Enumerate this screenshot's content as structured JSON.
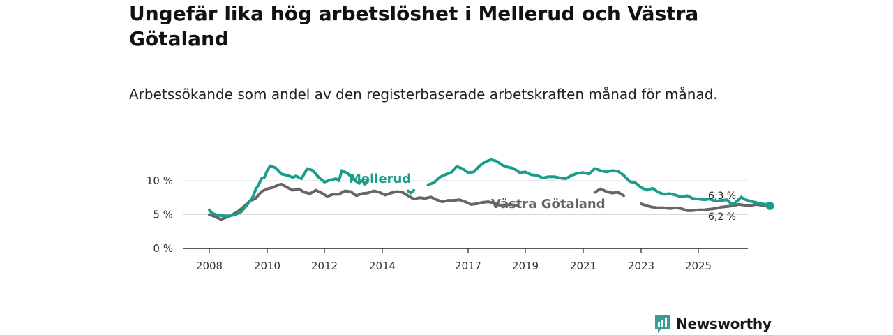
{
  "title": "Ungefär lika hög arbetslöshet i Mellerud och Västra Götaland",
  "subtitle": "Arbetssökande som andel av den registerbaserade arbetskraften månad för månad.",
  "brand": {
    "name": "Newsworthy",
    "icon": "newsworthy-logo-icon",
    "color": "#3a9c92"
  },
  "colors": {
    "mellerud": "#1a9e8c",
    "vastra": "#666666",
    "axis": "#222222",
    "grid": "#d9d9d9"
  },
  "chart_data": {
    "type": "line",
    "title": "Ungefär lika hög arbetslöshet i Mellerud och Västra Götaland",
    "xlabel": "",
    "ylabel": "",
    "xlim": [
      2007.1,
      2026.7
    ],
    "ylim": [
      0,
      12.5
    ],
    "grid": true,
    "x_ticks": [
      2008,
      2010,
      2012,
      2014,
      2017,
      2019,
      2021,
      2023,
      2025
    ],
    "x_tick_labels": [
      "2008",
      "2010",
      "2012",
      "2014",
      "2017",
      "2019",
      "2021",
      "2023",
      "2025"
    ],
    "y_ticks": [
      0,
      5,
      10
    ],
    "y_tick_labels": [
      "0 %",
      "5 %",
      "10 %"
    ],
    "series": [
      {
        "name": "Mellerud",
        "label": "Mellerud",
        "color": "#1a9e8c",
        "end_label": "6,3 %",
        "segments": [
          [
            [
              2008.0,
              5.7
            ],
            [
              2008.1,
              5.2
            ],
            [
              2008.3,
              4.9
            ],
            [
              2008.5,
              4.8
            ],
            [
              2008.7,
              4.8
            ],
            [
              2008.9,
              5.0
            ],
            [
              2009.1,
              5.4
            ],
            [
              2009.3,
              6.4
            ],
            [
              2009.5,
              7.6
            ],
            [
              2009.6,
              8.7
            ],
            [
              2009.7,
              9.4
            ],
            [
              2009.8,
              10.3
            ],
            [
              2009.9,
              10.5
            ],
            [
              2010.0,
              11.5
            ],
            [
              2010.1,
              12.2
            ],
            [
              2010.3,
              11.9
            ],
            [
              2010.5,
              11.0
            ],
            [
              2010.7,
              10.8
            ],
            [
              2010.9,
              10.5
            ],
            [
              2011.0,
              10.7
            ],
            [
              2011.2,
              10.3
            ],
            [
              2011.4,
              11.8
            ],
            [
              2011.6,
              11.5
            ],
            [
              2011.8,
              10.5
            ],
            [
              2012.0,
              9.8
            ],
            [
              2012.2,
              10.1
            ],
            [
              2012.4,
              10.3
            ],
            [
              2012.5,
              10.0
            ],
            [
              2012.6,
              11.5
            ],
            [
              2012.8,
              11.1
            ],
            [
              2013.0,
              10.2
            ],
            [
              2013.2,
              9.6
            ],
            [
              2013.3,
              10.1
            ],
            [
              2013.4,
              9.5
            ],
            [
              2013.5,
              10.0
            ]
          ],
          [
            [
              2014.9,
              8.5
            ],
            [
              2015.0,
              8.2
            ],
            [
              2015.1,
              8.6
            ]
          ],
          [
            [
              2015.6,
              9.4
            ],
            [
              2015.8,
              9.7
            ],
            [
              2016.0,
              10.5
            ],
            [
              2016.2,
              10.9
            ],
            [
              2016.4,
              11.2
            ],
            [
              2016.6,
              12.1
            ],
            [
              2016.8,
              11.8
            ],
            [
              2017.0,
              11.2
            ],
            [
              2017.2,
              11.3
            ],
            [
              2017.4,
              12.2
            ],
            [
              2017.6,
              12.8
            ],
            [
              2017.8,
              13.1
            ],
            [
              2018.0,
              12.9
            ],
            [
              2018.2,
              12.3
            ],
            [
              2018.4,
              12.0
            ],
            [
              2018.6,
              11.8
            ],
            [
              2018.8,
              11.2
            ],
            [
              2019.0,
              11.3
            ],
            [
              2019.2,
              10.9
            ],
            [
              2019.4,
              10.8
            ],
            [
              2019.6,
              10.4
            ],
            [
              2019.8,
              10.6
            ],
            [
              2020.0,
              10.6
            ],
            [
              2020.2,
              10.4
            ],
            [
              2020.4,
              10.3
            ],
            [
              2020.6,
              10.8
            ],
            [
              2020.8,
              11.1
            ],
            [
              2021.0,
              11.2
            ],
            [
              2021.2,
              11.0
            ],
            [
              2021.4,
              11.8
            ],
            [
              2021.6,
              11.5
            ],
            [
              2021.8,
              11.3
            ],
            [
              2022.0,
              11.5
            ],
            [
              2022.2,
              11.4
            ],
            [
              2022.4,
              10.8
            ],
            [
              2022.6,
              9.9
            ],
            [
              2022.8,
              9.7
            ],
            [
              2023.0,
              9.0
            ],
            [
              2023.2,
              8.6
            ],
            [
              2023.4,
              8.9
            ],
            [
              2023.6,
              8.3
            ],
            [
              2023.8,
              8.0
            ],
            [
              2024.0,
              8.1
            ],
            [
              2024.2,
              7.9
            ],
            [
              2024.4,
              7.6
            ],
            [
              2024.6,
              7.8
            ],
            [
              2024.8,
              7.4
            ],
            [
              2025.0,
              7.3
            ],
            [
              2025.2,
              7.2
            ],
            [
              2025.4,
              7.3
            ],
            [
              2025.6,
              7.0
            ],
            [
              2025.8,
              7.1
            ],
            [
              2026.0,
              7.2
            ],
            [
              2026.1,
              6.8
            ],
            [
              2026.2,
              6.5
            ],
            [
              2026.3,
              6.8
            ],
            [
              2026.5,
              7.6
            ],
            [
              2026.6,
              7.3
            ],
            [
              2026.8,
              7.0
            ],
            [
              2027.0,
              6.8
            ],
            [
              2027.2,
              6.6
            ],
            [
              2027.4,
              6.5
            ],
            [
              2027.5,
              6.3
            ]
          ]
        ]
      },
      {
        "name": "Västra Götaland",
        "label": "Västra Götaland",
        "color": "#666666",
        "end_label": "6,2 %",
        "segments": [
          [
            [
              2008.0,
              5.0
            ],
            [
              2008.2,
              4.7
            ],
            [
              2008.4,
              4.3
            ],
            [
              2008.6,
              4.6
            ],
            [
              2008.8,
              5.0
            ],
            [
              2009.0,
              5.5
            ],
            [
              2009.2,
              6.2
            ],
            [
              2009.4,
              7.0
            ],
            [
              2009.6,
              7.4
            ],
            [
              2009.8,
              8.4
            ],
            [
              2010.0,
              8.8
            ],
            [
              2010.2,
              9.0
            ],
            [
              2010.4,
              9.4
            ],
            [
              2010.5,
              9.5
            ],
            [
              2010.7,
              9.0
            ],
            [
              2010.9,
              8.6
            ],
            [
              2011.1,
              8.8
            ],
            [
              2011.3,
              8.3
            ],
            [
              2011.5,
              8.1
            ],
            [
              2011.7,
              8.6
            ],
            [
              2011.9,
              8.2
            ],
            [
              2012.1,
              7.7
            ],
            [
              2012.3,
              8.0
            ],
            [
              2012.5,
              8.0
            ],
            [
              2012.7,
              8.5
            ],
            [
              2012.9,
              8.4
            ],
            [
              2013.1,
              7.8
            ],
            [
              2013.3,
              8.1
            ],
            [
              2013.5,
              8.2
            ],
            [
              2013.7,
              8.5
            ],
            [
              2013.9,
              8.3
            ],
            [
              2014.1,
              7.9
            ],
            [
              2014.3,
              8.2
            ],
            [
              2014.5,
              8.4
            ],
            [
              2014.7,
              8.3
            ],
            [
              2014.9,
              7.8
            ],
            [
              2015.1,
              7.3
            ],
            [
              2015.3,
              7.5
            ],
            [
              2015.5,
              7.4
            ],
            [
              2015.7,
              7.6
            ],
            [
              2015.9,
              7.2
            ],
            [
              2016.1,
              6.9
            ],
            [
              2016.3,
              7.1
            ],
            [
              2016.5,
              7.1
            ],
            [
              2016.7,
              7.2
            ],
            [
              2016.9,
              6.9
            ],
            [
              2017.1,
              6.5
            ],
            [
              2017.3,
              6.6
            ],
            [
              2017.5,
              6.8
            ],
            [
              2017.7,
              6.9
            ],
            [
              2017.9,
              6.7
            ],
            [
              2018.1,
              6.4
            ],
            [
              2018.3,
              6.4
            ],
            [
              2018.5,
              6.5
            ],
            [
              2018.7,
              6.3
            ]
          ],
          [
            [
              2021.4,
              8.3
            ],
            [
              2021.6,
              8.8
            ],
            [
              2021.8,
              8.4
            ],
            [
              2022.0,
              8.2
            ],
            [
              2022.2,
              8.3
            ],
            [
              2022.4,
              7.8
            ]
          ],
          [
            [
              2023.0,
              6.6
            ],
            [
              2023.2,
              6.3
            ],
            [
              2023.4,
              6.1
            ],
            [
              2023.6,
              6.0
            ],
            [
              2023.8,
              6.0
            ],
            [
              2024.0,
              5.9
            ],
            [
              2024.2,
              6.0
            ],
            [
              2024.4,
              5.9
            ],
            [
              2024.6,
              5.6
            ],
            [
              2024.8,
              5.6
            ],
            [
              2025.0,
              5.7
            ],
            [
              2025.2,
              5.7
            ],
            [
              2025.4,
              5.8
            ],
            [
              2025.6,
              5.9
            ],
            [
              2025.8,
              6.1
            ],
            [
              2026.0,
              6.2
            ],
            [
              2026.2,
              6.3
            ],
            [
              2026.4,
              6.5
            ],
            [
              2026.6,
              6.4
            ],
            [
              2026.8,
              6.3
            ],
            [
              2027.0,
              6.5
            ],
            [
              2027.2,
              6.4
            ],
            [
              2027.4,
              6.3
            ],
            [
              2027.5,
              6.2
            ]
          ]
        ]
      }
    ]
  }
}
